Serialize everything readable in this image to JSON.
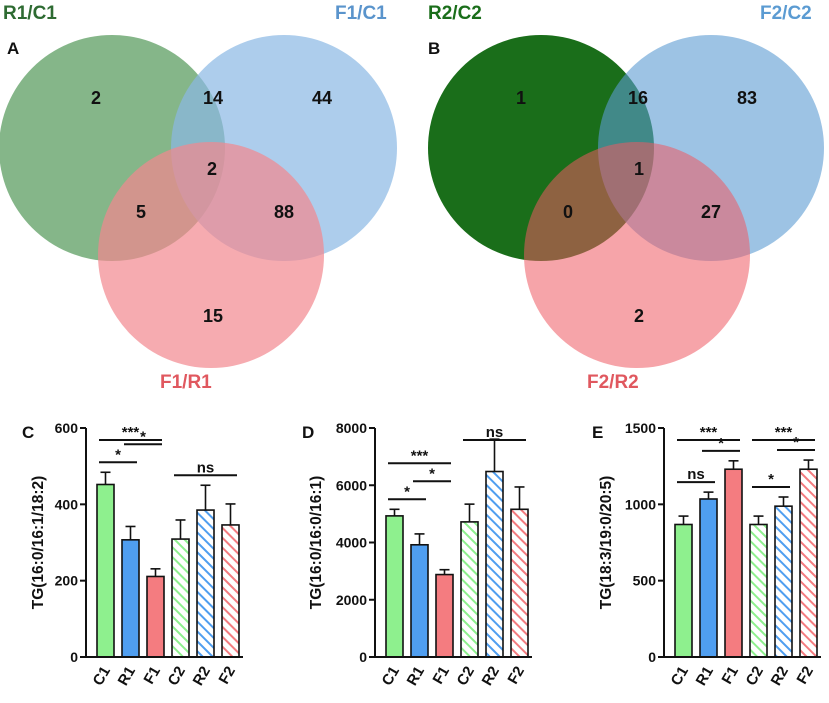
{
  "venn_panels": [
    {
      "letter": "A",
      "sets": [
        {
          "name": "R1/C1",
          "color": "#67a46b",
          "label_color": "#2e6b32"
        },
        {
          "name": "F1/C1",
          "color": "#8ab8e4",
          "label_color": "#5a94cc"
        },
        {
          "name": "F1/R1",
          "color": "#f2888e",
          "label_color": "#e0585f"
        }
      ],
      "counts": {
        "only_1": "2",
        "only_2": "44",
        "only_3": "15",
        "r12": "14",
        "r13": "5",
        "r23": "88",
        "all": "2"
      }
    },
    {
      "letter": "B",
      "sets": [
        {
          "name": "R2/C2",
          "color": "#1a6e1a",
          "label_color": "#1a6e1a"
        },
        {
          "name": "F2/C2",
          "color": "#5b9bd2",
          "label_color": "#5b9bd2"
        },
        {
          "name": "F2/R2",
          "color": "#ee5a62",
          "label_color": "#e0585f"
        }
      ],
      "counts": {
        "only_1": "1",
        "only_2": "83",
        "only_3": "2",
        "r12": "16",
        "r13": "0",
        "r23": "27",
        "all": "1"
      }
    }
  ],
  "chart_data": [
    {
      "type": "bar",
      "panel": "C",
      "ylabel": "TG(16:0/16:1/18:2)",
      "ylim": [
        0,
        600
      ],
      "yticks": [
        0,
        200,
        400,
        600
      ],
      "categories": [
        "C1",
        "R1",
        "F1",
        "C2",
        "R2",
        "F2"
      ],
      "values": [
        452,
        307,
        211,
        309,
        385,
        346
      ],
      "errors": [
        32,
        35,
        20,
        50,
        65,
        55
      ],
      "colors": [
        "#8ef08e",
        "#4f9ef0",
        "#f47c80",
        "#8ef08e",
        "#4f9ef0",
        "#f47c80"
      ],
      "hatched": [
        false,
        false,
        false,
        true,
        true,
        true
      ],
      "significance": [
        {
          "from": 0,
          "to": 1,
          "label": "*"
        },
        {
          "from": 0,
          "to": 2,
          "label": "***"
        },
        {
          "from": 1,
          "to": 2,
          "label": "*"
        },
        {
          "from": 3,
          "to": 5,
          "label": "ns"
        }
      ]
    },
    {
      "type": "bar",
      "panel": "D",
      "ylabel": "TG(16:0/16:0/16:1)",
      "ylim": [
        0,
        8000
      ],
      "yticks": [
        0,
        2000,
        4000,
        6000,
        8000
      ],
      "categories": [
        "C1",
        "R1",
        "F1",
        "C2",
        "R2",
        "F2"
      ],
      "values": [
        4930,
        3920,
        2880,
        4720,
        6480,
        5160
      ],
      "errors": [
        230,
        380,
        170,
        620,
        1130,
        780
      ],
      "colors": [
        "#8ef08e",
        "#4f9ef0",
        "#f47c80",
        "#8ef08e",
        "#4f9ef0",
        "#f47c80"
      ],
      "hatched": [
        false,
        false,
        false,
        true,
        true,
        true
      ],
      "significance": [
        {
          "from": 0,
          "to": 1,
          "label": "*"
        },
        {
          "from": 0,
          "to": 2,
          "label": "***"
        },
        {
          "from": 1,
          "to": 2,
          "label": "*"
        },
        {
          "from": 3,
          "to": 5,
          "label": "ns"
        }
      ]
    },
    {
      "type": "bar",
      "panel": "E",
      "ylabel": "TG(18:3/19:0/20:5)",
      "ylim": [
        0,
        1500
      ],
      "yticks": [
        0,
        500,
        1000,
        1500
      ],
      "categories": [
        "C1",
        "R1",
        "F1",
        "C2",
        "R2",
        "F2"
      ],
      "values": [
        868,
        1035,
        1230,
        868,
        988,
        1230
      ],
      "errors": [
        55,
        45,
        55,
        55,
        60,
        60
      ],
      "colors": [
        "#8ef08e",
        "#4f9ef0",
        "#f47c80",
        "#8ef08e",
        "#4f9ef0",
        "#f47c80"
      ],
      "hatched": [
        false,
        false,
        false,
        true,
        true,
        true
      ],
      "significance": [
        {
          "from": 0,
          "to": 1,
          "label": "ns"
        },
        {
          "from": 0,
          "to": 2,
          "label": "***"
        },
        {
          "from": 1,
          "to": 2,
          "label": "*"
        },
        {
          "from": 3,
          "to": 4,
          "label": "*"
        },
        {
          "from": 3,
          "to": 5,
          "label": "***"
        },
        {
          "from": 4,
          "to": 5,
          "label": "*"
        }
      ]
    }
  ]
}
